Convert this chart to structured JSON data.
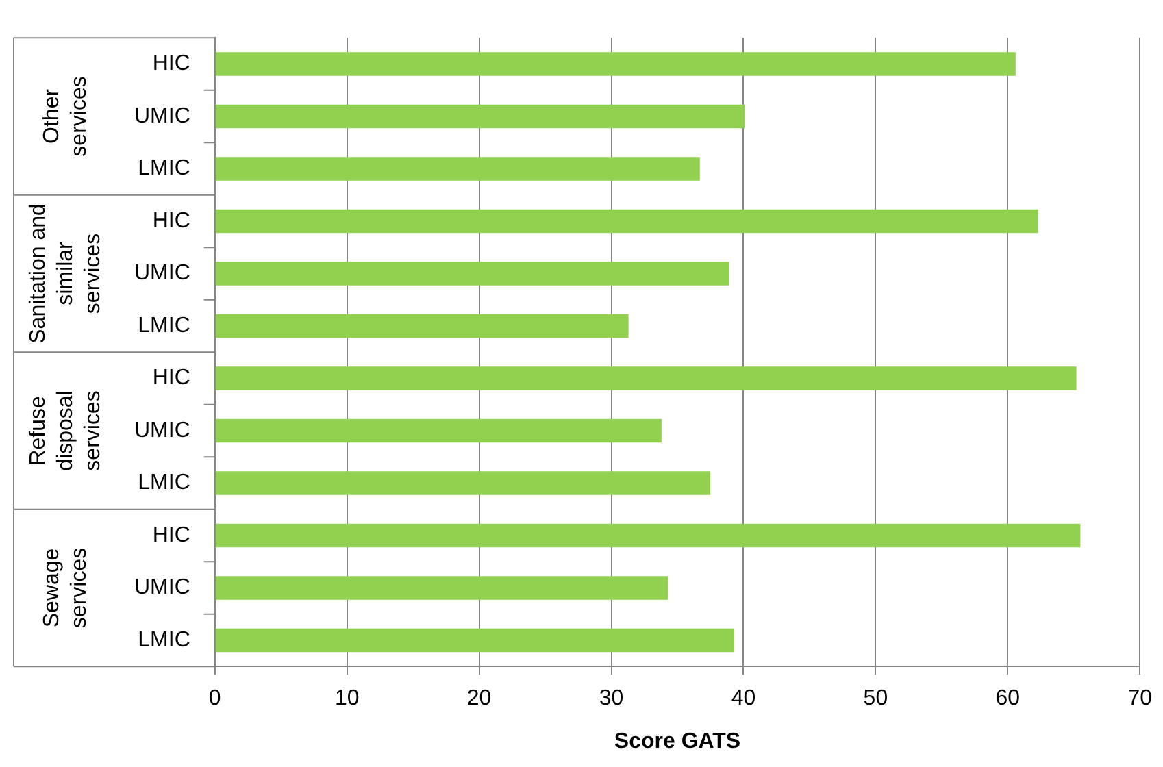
{
  "chart_data": {
    "type": "bar",
    "orientation": "horizontal",
    "xlabel": "Score GATS",
    "categories": [
      "HIC",
      "UMIC",
      "LMIC",
      "HIC",
      "UMIC",
      "LMIC",
      "HIC",
      "UMIC",
      "LMIC",
      "HIC",
      "UMIC",
      "LMIC"
    ],
    "values": [
      60.6,
      40.1,
      36.7,
      62.3,
      38.9,
      31.3,
      65.2,
      33.8,
      37.5,
      65.5,
      34.3,
      39.3
    ],
    "color": "#92d050",
    "annotations": [
      "Other services",
      "Sanitation and similar services",
      "Refuse disposal services",
      "Sewage services"
    ],
    "xlim": [
      0,
      70
    ],
    "xticks": [
      0,
      10,
      20,
      30,
      40,
      50,
      60,
      70
    ],
    "grid": "x",
    "legend": false
  }
}
